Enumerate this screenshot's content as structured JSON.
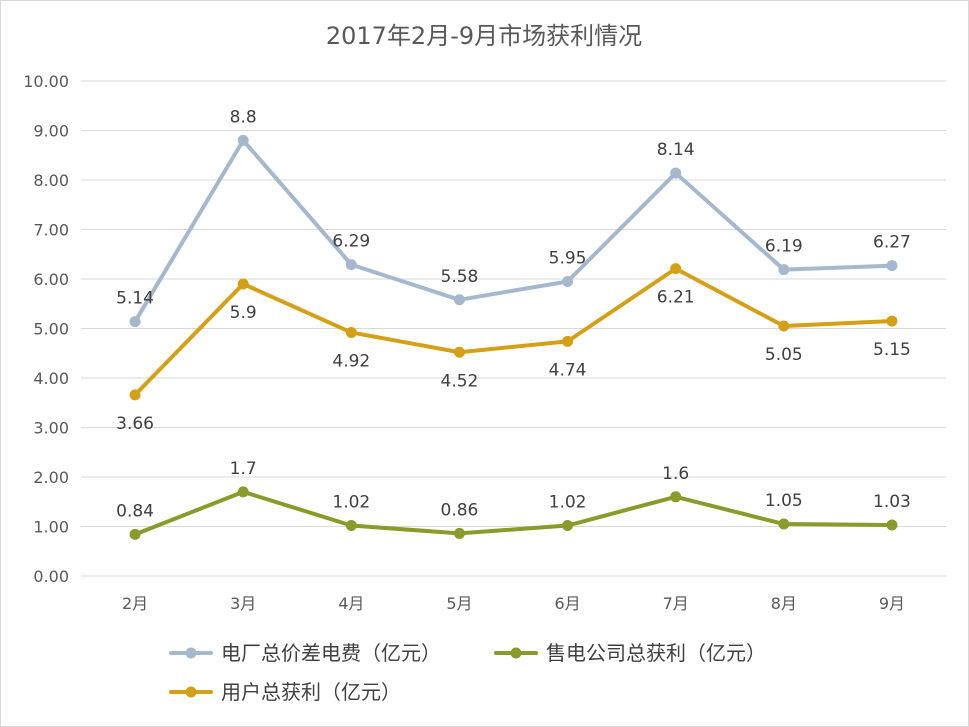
{
  "chart_data": {
    "type": "line",
    "title": "2017年2月-9月市场获利情况",
    "categories": [
      "2月",
      "3月",
      "4月",
      "5月",
      "6月",
      "7月",
      "8月",
      "9月"
    ],
    "ylim": [
      0,
      10
    ],
    "yticks": [
      "0.00",
      "1.00",
      "2.00",
      "3.00",
      "4.00",
      "5.00",
      "6.00",
      "7.00",
      "8.00",
      "9.00",
      "10.00"
    ],
    "grid": true,
    "legend_position": "bottom",
    "series": [
      {
        "name": "电厂总价差电费（亿元）",
        "color": "#a5b8cc",
        "values": [
          5.14,
          8.8,
          6.29,
          5.58,
          5.95,
          8.14,
          6.19,
          6.27
        ],
        "labels": [
          "5.14",
          "8.8",
          "6.29",
          "5.58",
          "5.95",
          "8.14",
          "6.19",
          "6.27"
        ],
        "label_pos": [
          "above",
          "above",
          "above",
          "above",
          "above",
          "above",
          "above",
          "above"
        ]
      },
      {
        "name": "售电公司总获利（亿元）",
        "color": "#8a9a2b",
        "values": [
          0.84,
          1.7,
          1.02,
          0.86,
          1.02,
          1.6,
          1.05,
          1.03
        ],
        "labels": [
          "0.84",
          "1.7",
          "1.02",
          "0.86",
          "1.02",
          "1.6",
          "1.05",
          "1.03"
        ],
        "label_pos": [
          "above",
          "above",
          "above",
          "above",
          "above",
          "above",
          "above",
          "above"
        ]
      },
      {
        "name": "用户总获利（亿元）",
        "color": "#d4a017",
        "values": [
          3.66,
          5.9,
          4.92,
          4.52,
          4.74,
          6.21,
          5.05,
          5.15
        ],
        "labels": [
          "3.66",
          "5.9",
          "4.92",
          "4.52",
          "4.74",
          "6.21",
          "5.05",
          "5.15"
        ],
        "label_pos": [
          "below",
          "below",
          "below",
          "below",
          "below",
          "below",
          "below",
          "below"
        ]
      }
    ]
  }
}
